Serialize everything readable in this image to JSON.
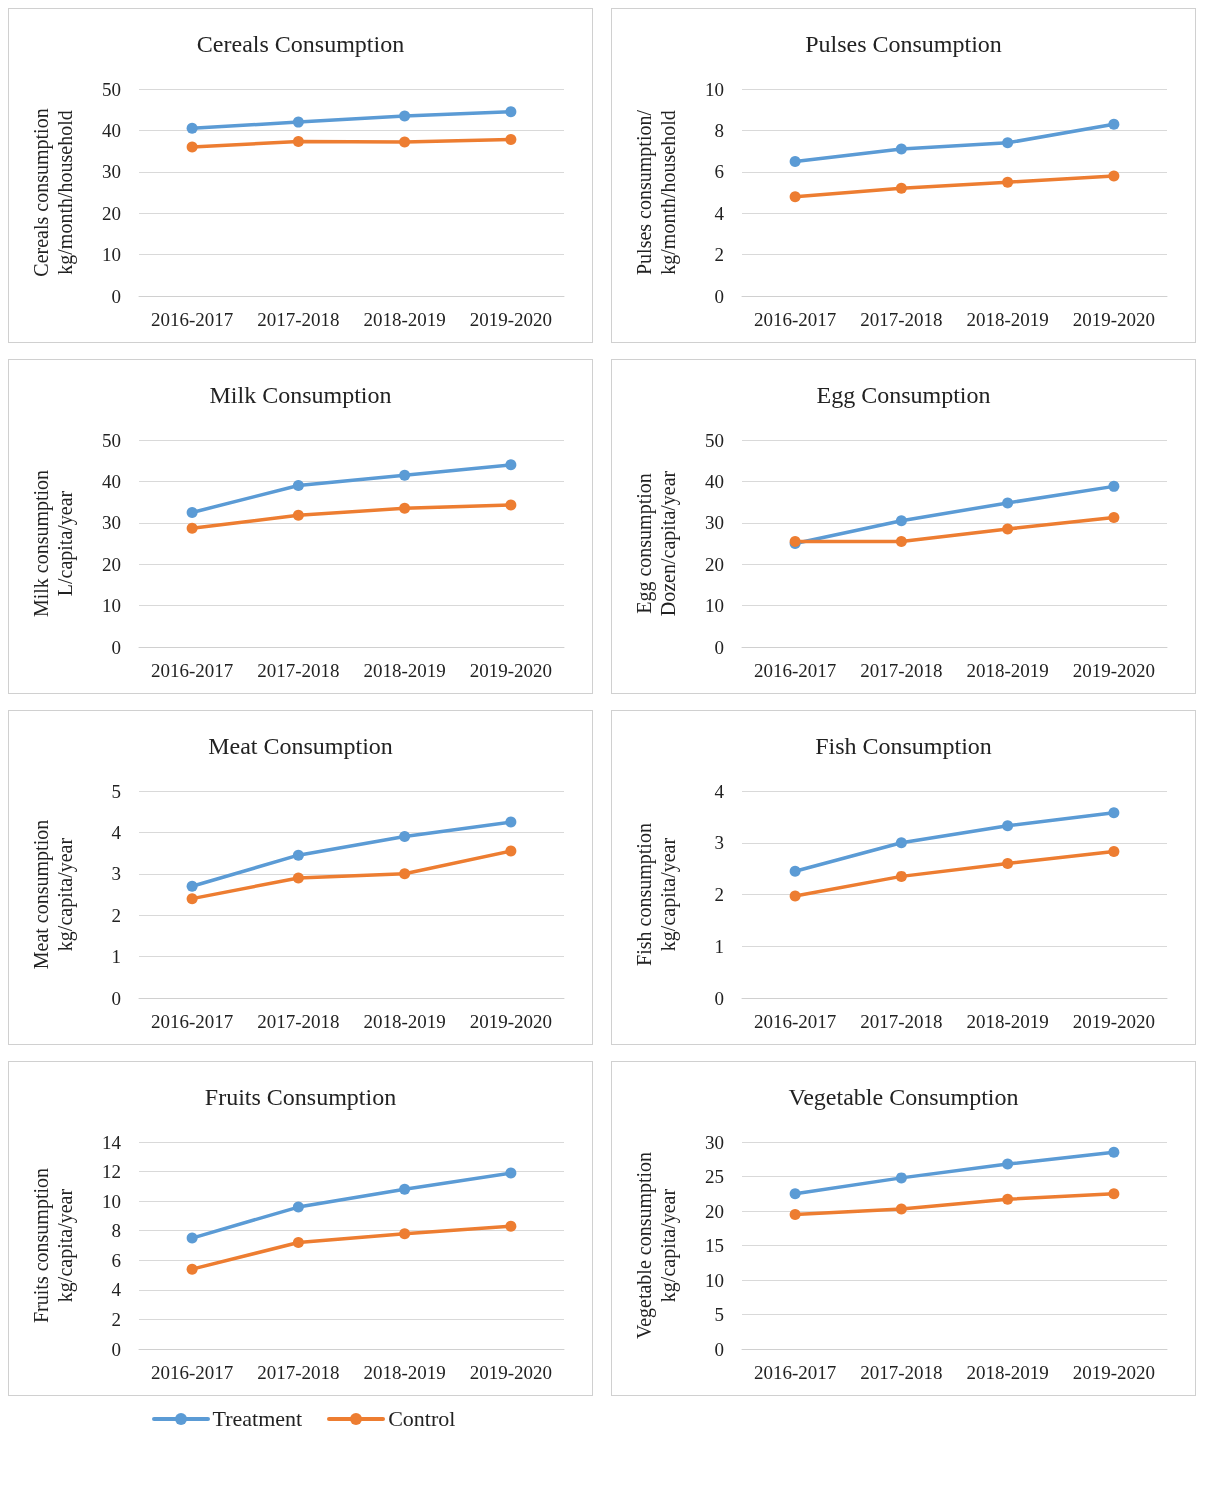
{
  "chart_data": [
    {
      "type": "line",
      "title": "Cereals Consumption",
      "ylabel": "Cereals consumption\nkg/month/household",
      "categories": [
        "2016-2017",
        "2017-2018",
        "2018-2019",
        "2019-2020"
      ],
      "ylim": [
        0,
        50
      ],
      "yticks": [
        0,
        10,
        20,
        30,
        40,
        50
      ],
      "grid": "y",
      "marker": "circle",
      "legend": "bottom",
      "series": [
        {
          "name": "Treatment",
          "color": "#5b9bd5",
          "values": [
            40.5,
            42,
            43.5,
            44.5
          ]
        },
        {
          "name": "Control",
          "color": "#ed7d31",
          "values": [
            36,
            37.3,
            37.2,
            37.8
          ]
        }
      ]
    },
    {
      "type": "line",
      "title": "Pulses Consumption",
      "ylabel": "Pulses consumption/\nkg/month/household",
      "categories": [
        "2016-2017",
        "2017-2018",
        "2018-2019",
        "2019-2020"
      ],
      "ylim": [
        0,
        10
      ],
      "yticks": [
        0,
        2,
        4,
        6,
        8,
        10
      ],
      "grid": "y",
      "marker": "circle",
      "series": [
        {
          "color": "#5b9bd5",
          "values": [
            6.5,
            7.1,
            7.4,
            8.3
          ]
        },
        {
          "color": "#ed7d31",
          "values": [
            4.8,
            5.2,
            5.5,
            5.8
          ]
        }
      ]
    },
    {
      "type": "line",
      "title": "Milk Consumption",
      "ylabel": "Milk consumption\nL/capita/year",
      "categories": [
        "2016-2017",
        "2017-2018",
        "2018-2019",
        "2019-2020"
      ],
      "ylim": [
        0,
        50
      ],
      "yticks": [
        0,
        10,
        20,
        30,
        40,
        50
      ],
      "grid": "y",
      "marker": "circle",
      "series": [
        {
          "color": "#5b9bd5",
          "values": [
            32.5,
            39,
            41.5,
            44
          ]
        },
        {
          "color": "#ed7d31",
          "values": [
            28.7,
            31.8,
            33.5,
            34.3
          ]
        }
      ]
    },
    {
      "type": "line",
      "title": "Egg Consumption",
      "ylabel": "Egg consumption\nDozen/capita/year",
      "categories": [
        "2016-2017",
        "2017-2018",
        "2018-2019",
        "2019-2020"
      ],
      "ylim": [
        0,
        50
      ],
      "yticks": [
        0,
        10,
        20,
        30,
        40,
        50
      ],
      "grid": "y",
      "marker": "circle",
      "series": [
        {
          "color": "#5b9bd5",
          "values": [
            25,
            30.5,
            34.8,
            38.8
          ]
        },
        {
          "color": "#ed7d31",
          "values": [
            25.5,
            25.5,
            28.5,
            31.3
          ]
        }
      ]
    },
    {
      "type": "line",
      "title": "Meat Consumption",
      "ylabel": "Meat consumption\nkg/capita/year",
      "categories": [
        "2016-2017",
        "2017-2018",
        "2018-2019",
        "2019-2020"
      ],
      "ylim": [
        0,
        5
      ],
      "yticks": [
        0,
        1,
        2,
        3,
        4,
        5
      ],
      "grid": "y",
      "marker": "circle",
      "series": [
        {
          "color": "#5b9bd5",
          "values": [
            2.7,
            3.45,
            3.9,
            4.25
          ]
        },
        {
          "color": "#ed7d31",
          "values": [
            2.4,
            2.9,
            3.0,
            3.55
          ]
        }
      ]
    },
    {
      "type": "line",
      "title": "Fish Consumption",
      "ylabel": "Fish consumption\nkg/capita/year",
      "categories": [
        "2016-2017",
        "2017-2018",
        "2018-2019",
        "2019-2020"
      ],
      "ylim": [
        0,
        4
      ],
      "yticks": [
        0,
        1,
        2,
        3,
        4
      ],
      "grid": "y",
      "marker": "circle",
      "series": [
        {
          "color": "#5b9bd5",
          "values": [
            2.45,
            3.0,
            3.33,
            3.58
          ]
        },
        {
          "color": "#ed7d31",
          "values": [
            1.97,
            2.35,
            2.6,
            2.83
          ]
        }
      ]
    },
    {
      "type": "line",
      "title": "Fruits Consumption",
      "ylabel": "Fruits consumption\nkg/capita/year",
      "categories": [
        "2016-2017",
        "2017-2018",
        "2018-2019",
        "2019-2020"
      ],
      "ylim": [
        0,
        14
      ],
      "yticks": [
        0,
        2,
        4,
        6,
        8,
        10,
        12,
        14
      ],
      "grid": "y",
      "marker": "circle",
      "series": [
        {
          "color": "#5b9bd5",
          "values": [
            7.5,
            9.6,
            10.8,
            11.9
          ]
        },
        {
          "color": "#ed7d31",
          "values": [
            5.4,
            7.2,
            7.8,
            8.3
          ]
        }
      ]
    },
    {
      "type": "line",
      "title": "Vegetable Consumption",
      "ylabel": "Vegetable consumption\nkg/capita/year",
      "categories": [
        "2016-2017",
        "2017-2018",
        "2018-2019",
        "2019-2020"
      ],
      "ylim": [
        0,
        30
      ],
      "yticks": [
        0,
        5,
        10,
        15,
        20,
        25,
        30
      ],
      "grid": "y",
      "marker": "circle",
      "series": [
        {
          "color": "#5b9bd5",
          "values": [
            22.5,
            24.8,
            26.8,
            28.5
          ]
        },
        {
          "color": "#ed7d31",
          "values": [
            19.5,
            20.3,
            21.7,
            22.5
          ]
        }
      ]
    }
  ]
}
